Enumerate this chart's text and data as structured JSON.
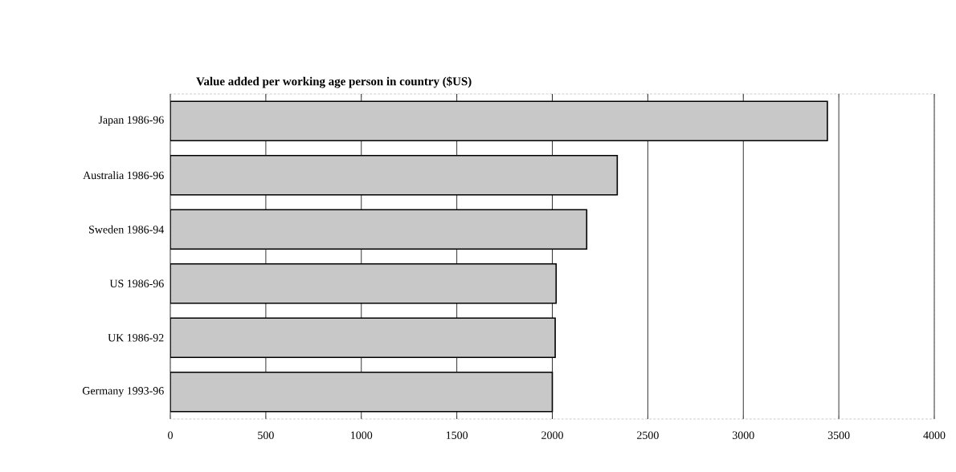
{
  "chart_data": {
    "type": "bar",
    "orientation": "horizontal",
    "title": "Value added per working age person in country ($US)",
    "categories": [
      "Japan 1986-96",
      "Australia 1986-96",
      "Sweden 1986-94",
      "US 1986-96",
      "UK 1986-92",
      "Germany 1993-96"
    ],
    "values": [
      3440,
      2340,
      2180,
      2020,
      2015,
      2000
    ],
    "color": "#c8c8c8",
    "xlim": [
      0,
      4000
    ],
    "xticks": [
      0,
      500,
      1000,
      1500,
      2000,
      2500,
      3000,
      3500,
      4000
    ],
    "grid": "x"
  }
}
